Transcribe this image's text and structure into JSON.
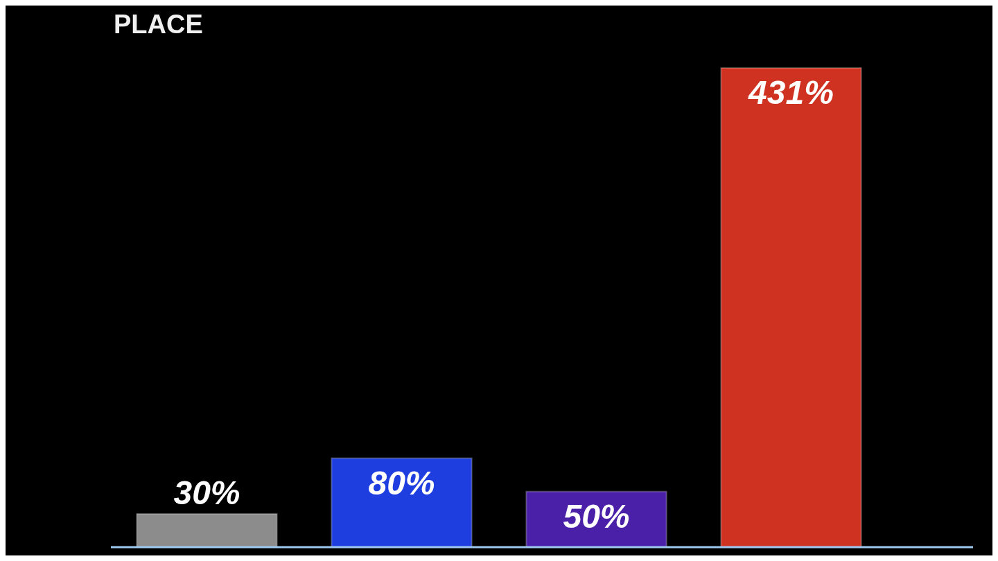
{
  "chart_data": {
    "type": "bar",
    "title": "PLACE",
    "categories": [
      null,
      null,
      null,
      null
    ],
    "values": [
      30,
      80,
      50,
      431
    ],
    "colors": [
      "#8c8c8c",
      "#1f3ee0",
      "#4a20a8",
      "#d03222"
    ],
    "value_labels": [
      "30%",
      "80%",
      "50%",
      "431%"
    ]
  }
}
